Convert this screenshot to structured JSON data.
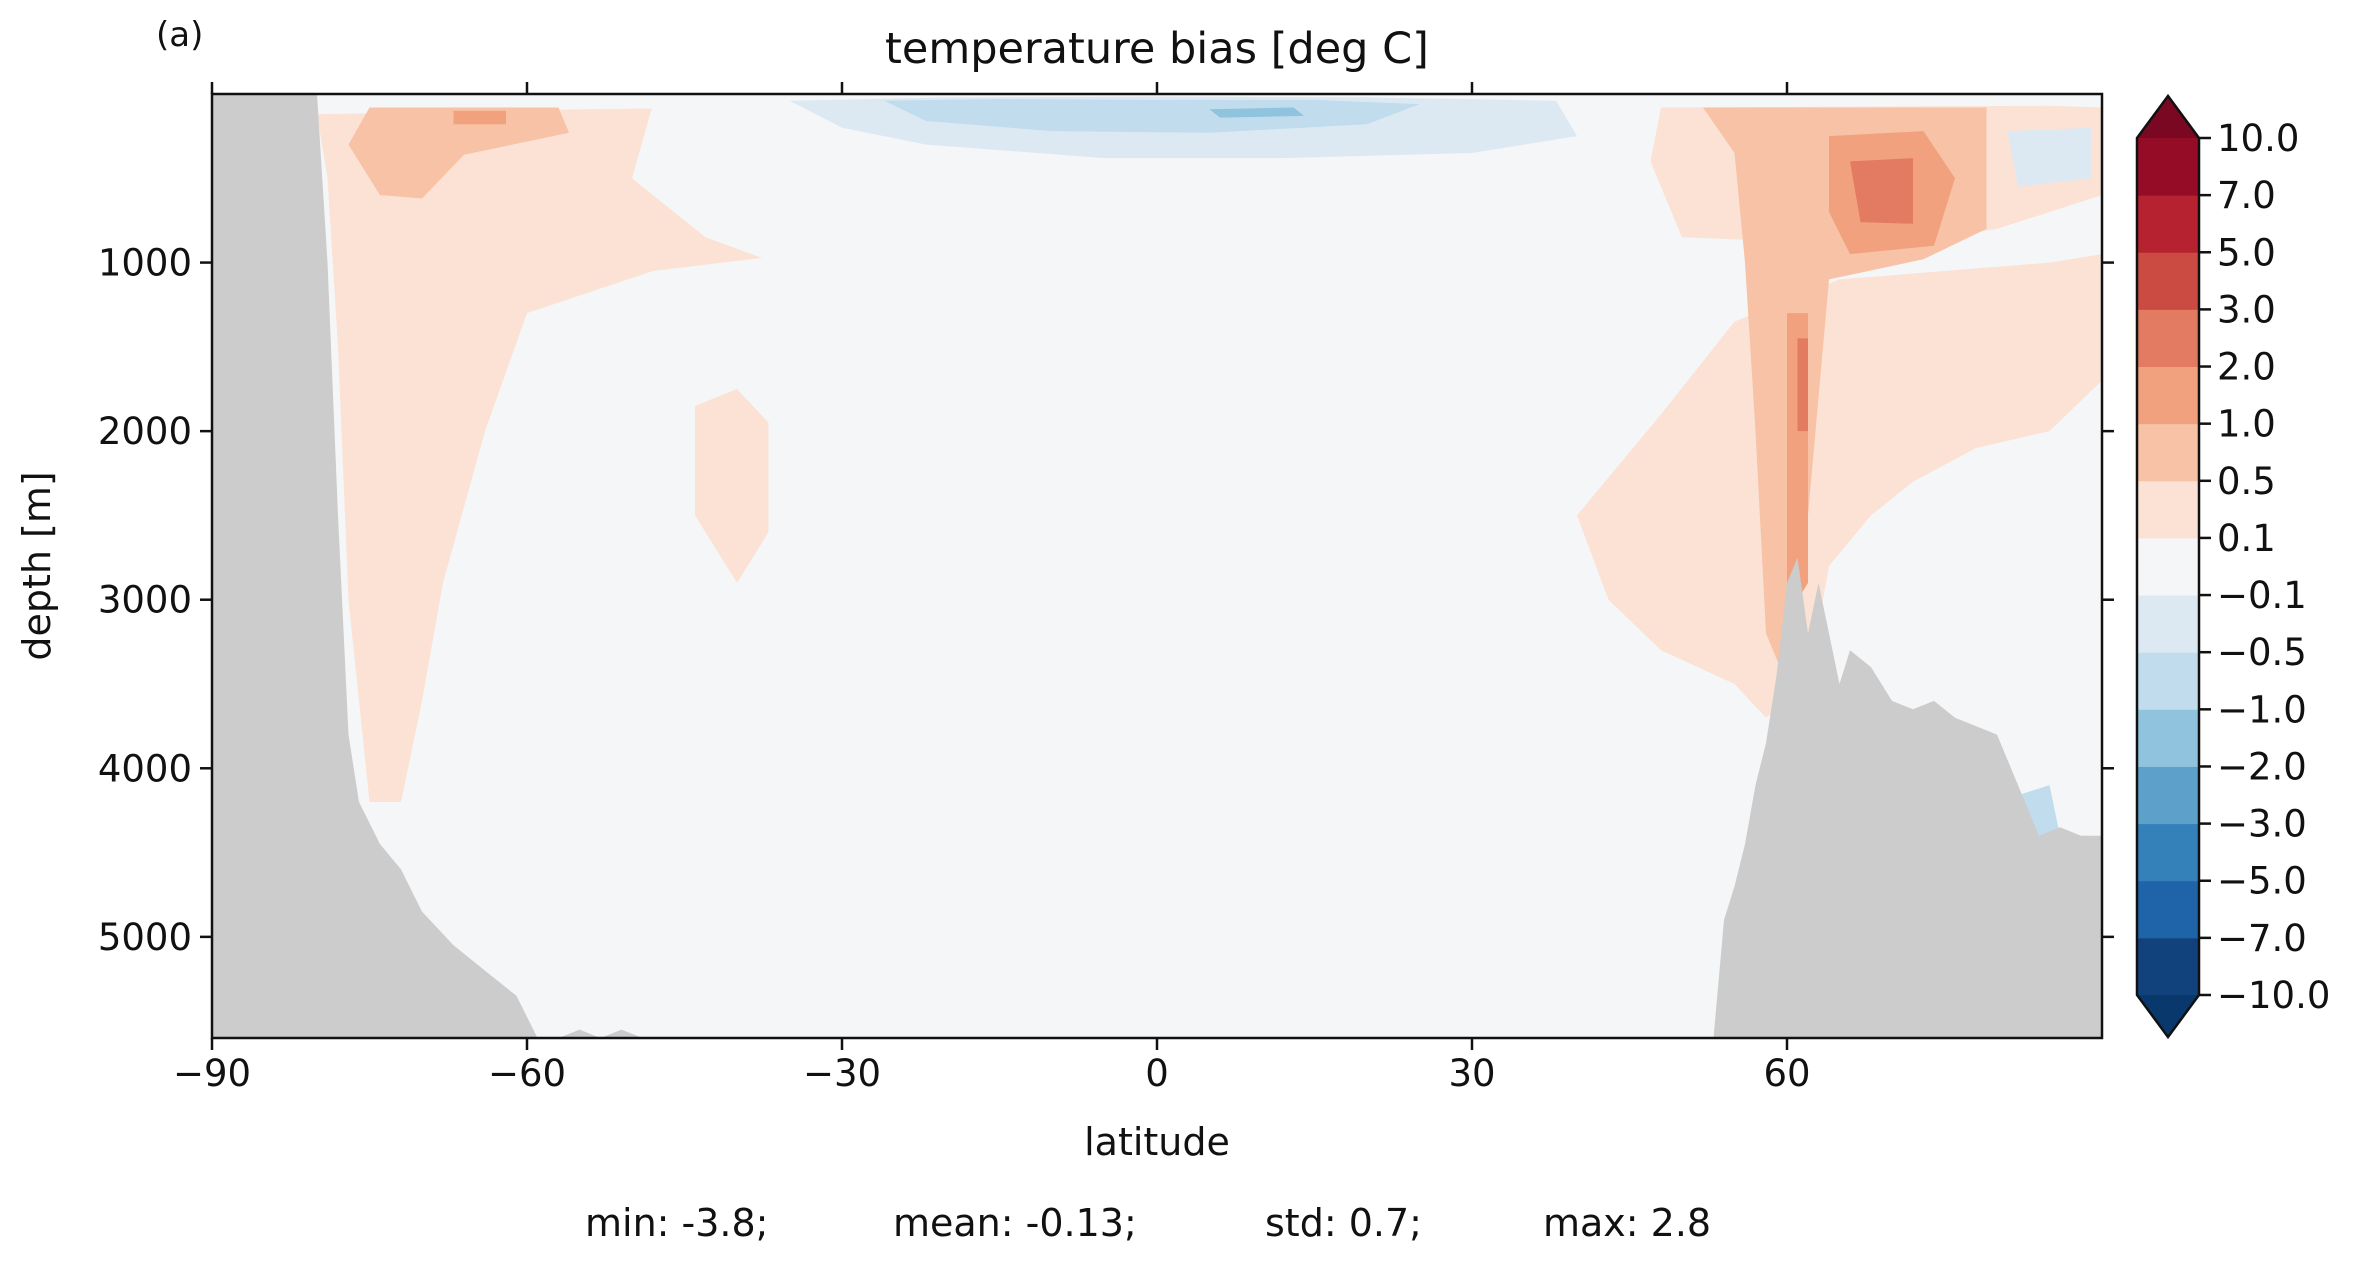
{
  "chart_data": {
    "type": "heatmap",
    "panel_label": "(a)",
    "title": "temperature bias [deg C]",
    "xlabel": "latitude",
    "ylabel": "depth [m]",
    "xlim": [
      -90,
      90
    ],
    "ylim": [
      5600,
      0
    ],
    "y_inverted": true,
    "xticks": [
      -90,
      -60,
      -30,
      0,
      30,
      60
    ],
    "xtick_labels": [
      "−90",
      "−60",
      "−30",
      "0",
      "30",
      "60"
    ],
    "yticks": [
      1000,
      2000,
      3000,
      4000,
      5000
    ],
    "ytick_labels": [
      "1000",
      "2000",
      "3000",
      "4000",
      "5000"
    ],
    "colorbar": {
      "levels": [
        -10,
        -7,
        -5,
        -3,
        -2,
        -1,
        -0.5,
        -0.1,
        0.1,
        0.5,
        1,
        2,
        3,
        5,
        7,
        10
      ],
      "tick_labels": [
        "−10.0",
        "−7.0",
        "−5.0",
        "−3.0",
        "−2.0",
        "−1.0",
        "−0.5",
        "−0.1",
        "0.1",
        "0.5",
        "1.0",
        "2.0",
        "3.0",
        "5.0",
        "7.0",
        "10.0"
      ],
      "colors": [
        "#11427c",
        "#1f63a8",
        "#3480b9",
        "#5da1cb",
        "#90c3dd",
        "#c1dcec",
        "#dde9f2",
        "#f5f6f7",
        "#fbe2d5",
        "#f7c2a5",
        "#f2a17f",
        "#e27b62",
        "#cb4b43",
        "#b72230",
        "#950c27"
      ],
      "extend_low_color": "#09386d",
      "extend_high_color": "#7a0822",
      "extend": "both"
    },
    "land_color": "#cccccc",
    "bathymetry": {
      "x": [
        -90,
        -80,
        -79,
        -78,
        -77,
        -76,
        -74,
        -72,
        -70,
        -67,
        -64,
        -61,
        -59,
        -57,
        -55,
        -53,
        -51,
        -49,
        -45,
        0,
        40,
        53,
        54,
        55,
        56,
        57,
        58,
        59,
        60,
        61,
        62,
        63,
        65,
        66,
        68,
        70,
        72,
        74,
        76,
        78,
        80,
        82,
        84,
        86,
        88,
        90
      ],
      "y": [
        0,
        0,
        1000,
        2500,
        3800,
        4200,
        4450,
        4600,
        4850,
        5050,
        5200,
        5350,
        5600,
        5600,
        5550,
        5600,
        5550,
        5600,
        5600,
        5600,
        5600,
        5600,
        4900,
        4700,
        4450,
        4100,
        3850,
        3450,
        2900,
        2750,
        3200,
        2900,
        3500,
        3300,
        3400,
        3600,
        3650,
        3600,
        3700,
        3750,
        3800,
        4100,
        4400,
        4350,
        4400,
        4400
      ]
    },
    "field_regions": [
      {
        "bin": 8,
        "poly": [
          [
            -80,
            120
          ],
          [
            -55,
            90
          ],
          [
            -35,
            80
          ],
          [
            -27,
            180
          ],
          [
            -20,
            420
          ],
          [
            -22,
            700
          ],
          [
            -28,
            900
          ],
          [
            -48,
            1050
          ],
          [
            -60,
            1300
          ],
          [
            -64,
            2000
          ],
          [
            -68,
            2900
          ],
          [
            -70,
            3600
          ],
          [
            -72,
            4200
          ],
          [
            -75,
            4200
          ],
          [
            -77,
            3000
          ],
          [
            -78,
            1500
          ],
          [
            -79,
            500
          ]
        ]
      },
      {
        "bin": 9,
        "poly": [
          [
            -75,
            80
          ],
          [
            -57,
            80
          ],
          [
            -56,
            230
          ],
          [
            -66,
            360
          ],
          [
            -70,
            620
          ],
          [
            -74,
            600
          ],
          [
            -77,
            300
          ]
        ]
      },
      {
        "bin": 10,
        "poly": [
          [
            -67,
            100
          ],
          [
            -62,
            100
          ],
          [
            -62,
            180
          ],
          [
            -67,
            180
          ]
        ]
      },
      {
        "bin": 8,
        "poly": [
          [
            -44,
            1850
          ],
          [
            -40,
            1750
          ],
          [
            -37,
            1950
          ],
          [
            -37,
            2600
          ],
          [
            -40,
            2900
          ],
          [
            -44,
            2500
          ]
        ]
      },
      {
        "bin": 7,
        "poly": [
          [
            -48,
            60
          ],
          [
            -40,
            20
          ],
          [
            -30,
            10
          ],
          [
            0,
            5
          ],
          [
            20,
            10
          ],
          [
            40,
            20
          ],
          [
            48,
            60
          ],
          [
            50,
            250
          ],
          [
            48,
            400
          ],
          [
            44,
            800
          ],
          [
            36,
            1000
          ],
          [
            24,
            1100
          ],
          [
            14,
            1300
          ],
          [
            5,
            1450
          ],
          [
            -5,
            1500
          ],
          [
            -20,
            1300
          ],
          [
            -32,
            1100
          ],
          [
            -43,
            850
          ],
          [
            -50,
            500
          ]
        ]
      },
      {
        "bin": 6,
        "poly": [
          [
            -35,
            40
          ],
          [
            -20,
            20
          ],
          [
            0,
            15
          ],
          [
            20,
            20
          ],
          [
            38,
            40
          ],
          [
            40,
            250
          ],
          [
            30,
            350
          ],
          [
            12,
            380
          ],
          [
            -5,
            380
          ],
          [
            -22,
            300
          ],
          [
            -30,
            200
          ]
        ]
      },
      {
        "bin": 5,
        "poly": [
          [
            -26,
            40
          ],
          [
            -15,
            30
          ],
          [
            0,
            35
          ],
          [
            15,
            35
          ],
          [
            25,
            60
          ],
          [
            20,
            180
          ],
          [
            5,
            230
          ],
          [
            -10,
            220
          ],
          [
            -22,
            160
          ]
        ]
      },
      {
        "bin": 4,
        "poly": [
          [
            5,
            90
          ],
          [
            13,
            80
          ],
          [
            14,
            130
          ],
          [
            6,
            140
          ]
        ]
      },
      {
        "bin": 8,
        "poly": [
          [
            40,
            2500
          ],
          [
            48,
            1900
          ],
          [
            55,
            1350
          ],
          [
            65,
            1100
          ],
          [
            75,
            1050
          ],
          [
            85,
            1000
          ],
          [
            90,
            950
          ],
          [
            90,
            1700
          ],
          [
            85,
            2000
          ],
          [
            78,
            2100
          ],
          [
            72,
            2300
          ],
          [
            68,
            2500
          ],
          [
            64,
            2800
          ],
          [
            62,
            3500
          ],
          [
            58,
            3700
          ],
          [
            55,
            3500
          ],
          [
            48,
            3300
          ],
          [
            43,
            3000
          ]
        ]
      },
      {
        "bin": 8,
        "poly": [
          [
            48,
            80
          ],
          [
            85,
            70
          ],
          [
            90,
            80
          ],
          [
            90,
            600
          ],
          [
            80,
            800
          ],
          [
            70,
            900
          ],
          [
            50,
            850
          ],
          [
            47,
            400
          ]
        ]
      },
      {
        "bin": 9,
        "poly": [
          [
            52,
            80
          ],
          [
            79,
            80
          ],
          [
            79,
            800
          ],
          [
            73,
            980
          ],
          [
            64,
            1100
          ],
          [
            62,
            2500
          ],
          [
            60,
            3500
          ],
          [
            58,
            3200
          ],
          [
            57,
            2000
          ],
          [
            56,
            1000
          ],
          [
            55,
            350
          ]
        ]
      },
      {
        "bin": 10,
        "poly": [
          [
            64,
            250
          ],
          [
            73,
            220
          ],
          [
            76,
            500
          ],
          [
            74,
            900
          ],
          [
            66,
            950
          ],
          [
            64,
            700
          ]
        ]
      },
      {
        "bin": 10,
        "poly": [
          [
            60,
            1300
          ],
          [
            62,
            1300
          ],
          [
            62,
            2900
          ],
          [
            60,
            3100
          ]
        ]
      },
      {
        "bin": 11,
        "poly": [
          [
            66,
            400
          ],
          [
            72,
            380
          ],
          [
            72,
            770
          ],
          [
            67,
            760
          ]
        ]
      },
      {
        "bin": 11,
        "poly": [
          [
            61,
            1450
          ],
          [
            62,
            1450
          ],
          [
            62,
            2000
          ],
          [
            61,
            2000
          ]
        ]
      },
      {
        "bin": 6,
        "poly": [
          [
            81,
            220
          ],
          [
            89,
            200
          ],
          [
            89,
            500
          ],
          [
            82,
            550
          ]
        ]
      },
      {
        "bin": 5,
        "poly": [
          [
            80,
            4200
          ],
          [
            85,
            4100
          ],
          [
            86,
            4400
          ],
          [
            82,
            4400
          ]
        ]
      }
    ],
    "stats": {
      "min": -3.8,
      "mean": -0.13,
      "std": 0.7,
      "max": 2.8
    }
  },
  "footer": {
    "min_text": "min: -3.8;",
    "mean_text": "mean: -0.13;",
    "std_text": "std: 0.7;",
    "max_text": "max: 2.8"
  }
}
